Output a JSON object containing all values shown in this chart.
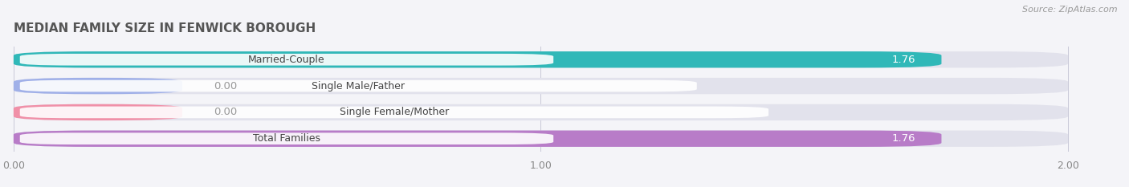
{
  "title": "MEDIAN FAMILY SIZE IN FENWICK BOROUGH",
  "source": "Source: ZipAtlas.com",
  "categories": [
    "Married-Couple",
    "Single Male/Father",
    "Single Female/Mother",
    "Total Families"
  ],
  "values": [
    1.76,
    0.0,
    0.0,
    1.76
  ],
  "bar_colors": [
    "#30b8b8",
    "#a0b0e8",
    "#f090a8",
    "#b87cc8"
  ],
  "xlim": [
    0,
    2.09
  ],
  "data_max": 2.0,
  "xticks": [
    0.0,
    1.0,
    2.0
  ],
  "xtick_labels": [
    "0.00",
    "1.00",
    "2.00"
  ],
  "background_color": "#f4f4f8",
  "bar_bg_color": "#e2e2ec",
  "title_fontsize": 11,
  "source_fontsize": 8,
  "bar_height": 0.62,
  "bar_gap": 1.0,
  "label_fontsize": 9,
  "value_fontsize": 9.5
}
